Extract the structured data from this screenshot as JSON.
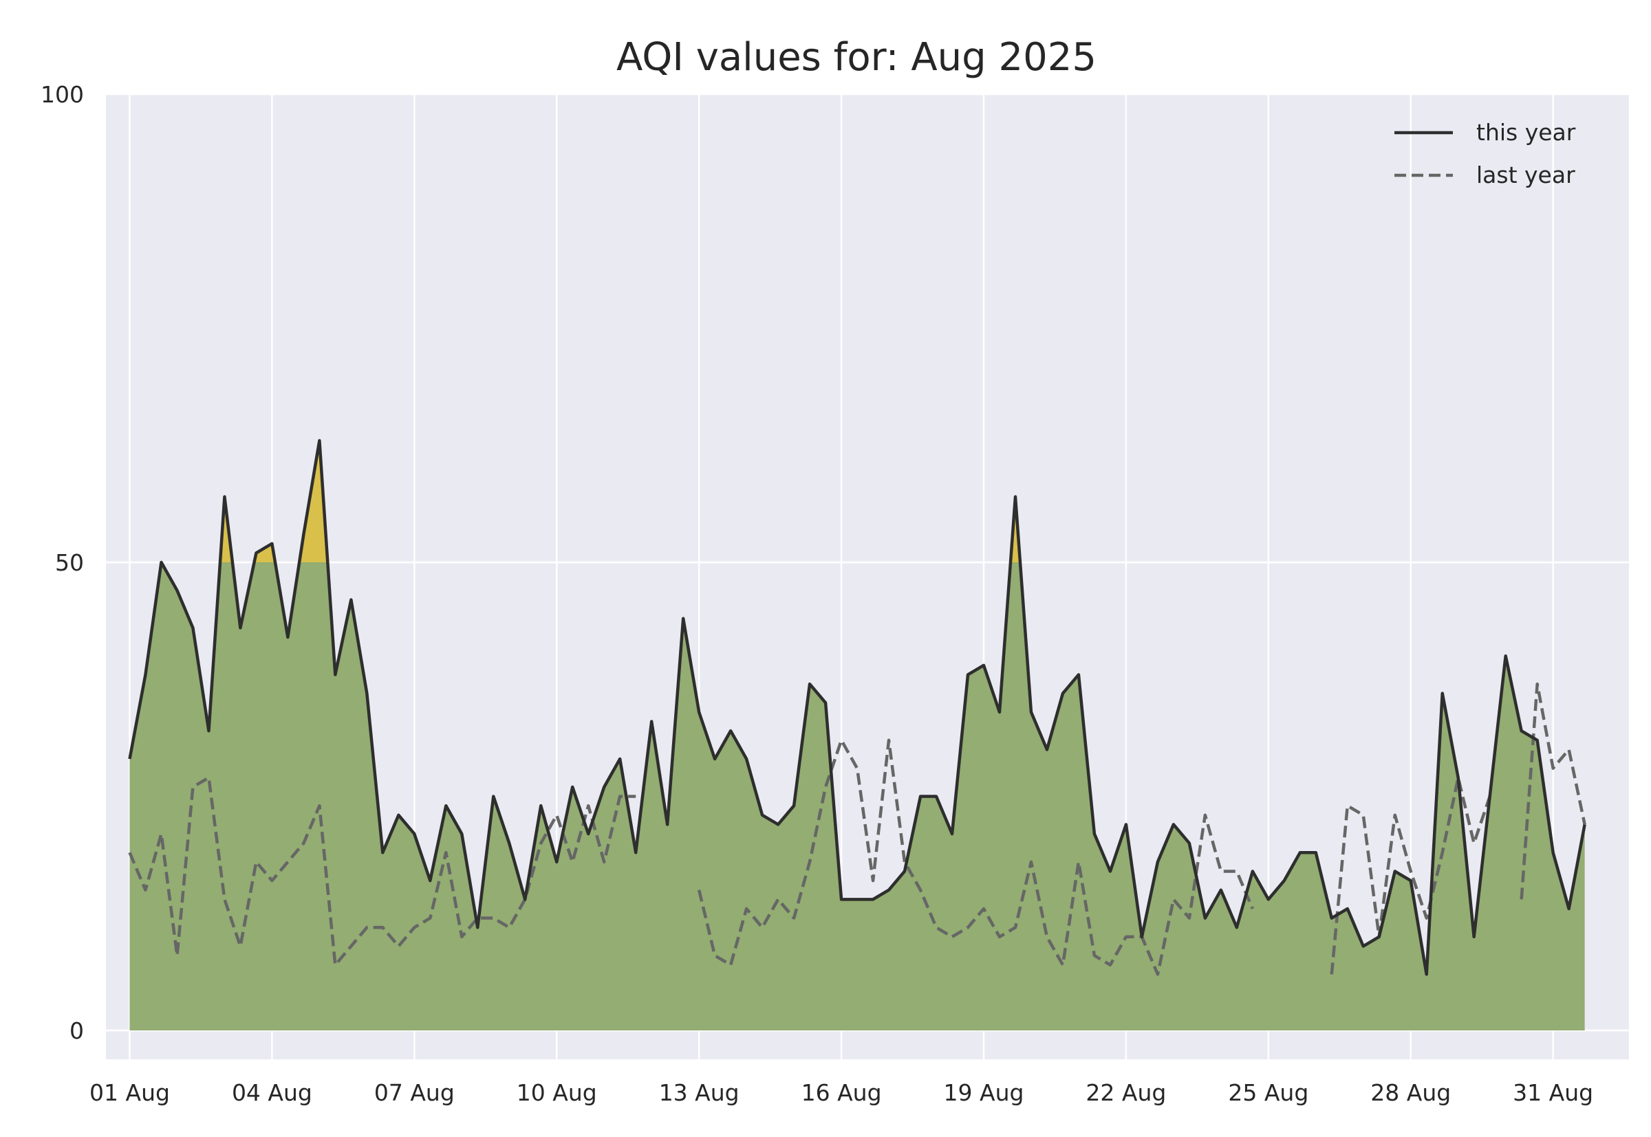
{
  "chart_data": {
    "type": "area",
    "title": "AQI values for: Aug 2025",
    "xlabel": "",
    "ylabel": "",
    "ylim": [
      0,
      100
    ],
    "yticks": [
      0,
      50,
      100
    ],
    "xlim": [
      -0.5,
      31.6
    ],
    "xtick_positions": [
      0,
      3,
      6,
      9,
      12,
      15,
      18,
      21,
      24,
      27,
      30
    ],
    "xtick_labels": [
      "01 Aug",
      "04 Aug",
      "07 Aug",
      "10 Aug",
      "13 Aug",
      "16 Aug",
      "19 Aug",
      "22 Aug",
      "25 Aug",
      "28 Aug",
      "31 Aug"
    ],
    "grid": true,
    "legend_position": "top-right",
    "aqi_threshold": 50,
    "colors": {
      "background": "#eaeaf2",
      "grid": "#ffffff",
      "good_fill": "#93ad72",
      "moderate_fill": "#d9c04b",
      "this_year_line": "#2e2e2e",
      "last_year_line": "#666666"
    },
    "series": [
      {
        "name": "this year",
        "style": "solid",
        "x": [
          0,
          0.333,
          0.667,
          1,
          1.333,
          1.667,
          2,
          2.333,
          2.667,
          3,
          3.333,
          3.667,
          4,
          4.333,
          4.667,
          5,
          5.333,
          5.667,
          6,
          6.333,
          6.667,
          7,
          7.333,
          7.667,
          8,
          8.333,
          8.667,
          9,
          9.333,
          9.667,
          10,
          10.333,
          10.667,
          11,
          11.333,
          11.667,
          12,
          12.333,
          12.667,
          13,
          13.333,
          13.667,
          14,
          14.333,
          14.667,
          15,
          15.333,
          15.667,
          16,
          16.333,
          16.667,
          17,
          17.333,
          17.667,
          18,
          18.333,
          18.667,
          19,
          19.333,
          19.667,
          20,
          20.333,
          20.667,
          21,
          21.333,
          21.667,
          22,
          22.333,
          22.667,
          23,
          23.333,
          23.667,
          24,
          24.333,
          24.667,
          25,
          25.333,
          25.667,
          26,
          26.333,
          26.667,
          27,
          27.333,
          27.667,
          28,
          28.333,
          28.667,
          29,
          29.333,
          29.667,
          30,
          30.333,
          30.667
        ],
        "values": [
          29,
          38,
          50,
          47,
          43,
          32,
          57,
          43,
          51,
          52,
          42,
          53,
          63,
          38,
          46,
          36,
          19,
          23,
          21,
          16,
          24,
          21,
          11,
          25,
          20,
          14,
          24,
          18,
          26,
          21,
          26,
          29,
          19,
          33,
          22,
          44,
          34,
          29,
          32,
          29,
          23,
          22,
          24,
          37,
          35,
          14,
          14,
          14,
          15,
          17,
          25,
          25,
          21,
          38,
          39,
          34,
          57,
          34,
          30,
          36,
          38,
          21,
          17,
          22,
          10,
          18,
          22,
          20,
          12,
          15,
          11,
          17,
          14,
          16,
          19,
          19,
          12,
          13,
          9,
          10,
          17,
          16,
          6,
          36,
          27,
          10,
          25,
          40,
          32,
          31,
          19,
          13,
          22
        ]
      },
      {
        "name": "last year",
        "style": "dashed",
        "x": [
          0,
          0.333,
          0.667,
          1,
          1.333,
          1.667,
          2,
          2.333,
          2.667,
          3,
          3.333,
          3.667,
          4,
          4.333,
          4.667,
          5,
          5.333,
          5.667,
          6,
          6.333,
          6.667,
          7,
          7.333,
          7.667,
          8,
          8.333,
          8.667,
          9,
          9.333,
          9.667,
          10,
          10.333,
          10.667,
          11,
          11.333,
          11.667,
          12,
          12.333,
          12.667,
          13,
          13.333,
          13.667,
          14,
          14.333,
          14.667,
          15,
          15.333,
          15.667,
          16,
          16.333,
          16.667,
          17,
          17.333,
          17.667,
          18,
          18.333,
          18.667,
          19,
          19.333,
          19.667,
          20,
          20.333,
          20.667,
          21,
          21.333,
          21.667,
          22,
          22.333,
          22.667,
          23,
          23.333,
          23.667,
          24,
          24.333,
          24.667,
          25,
          25.333,
          25.667,
          26,
          26.333,
          26.667,
          27,
          27.333,
          27.667,
          28,
          28.333,
          28.667,
          29,
          29.333,
          29.667,
          30,
          30.333,
          30.667
        ],
        "values": [
          19,
          15,
          21,
          8,
          26,
          27,
          14,
          9,
          18,
          16,
          18,
          20,
          24,
          7,
          9,
          11,
          11,
          9,
          11,
          12,
          19,
          10,
          12,
          12,
          11,
          14,
          20,
          23,
          18,
          24,
          18,
          25,
          25,
          null,
          null,
          null,
          15,
          8,
          7,
          13,
          11,
          14,
          12,
          18,
          26,
          31,
          28,
          16,
          31,
          18,
          15,
          11,
          10,
          11,
          13,
          10,
          11,
          18,
          10,
          7,
          18,
          8,
          7,
          10,
          10,
          6,
          14,
          12,
          23,
          17,
          17,
          13,
          null,
          null,
          null,
          null,
          6,
          24,
          23,
          10,
          23,
          17,
          12,
          19,
          27,
          20,
          25,
          null,
          14,
          37,
          28,
          30,
          22
        ]
      }
    ]
  }
}
